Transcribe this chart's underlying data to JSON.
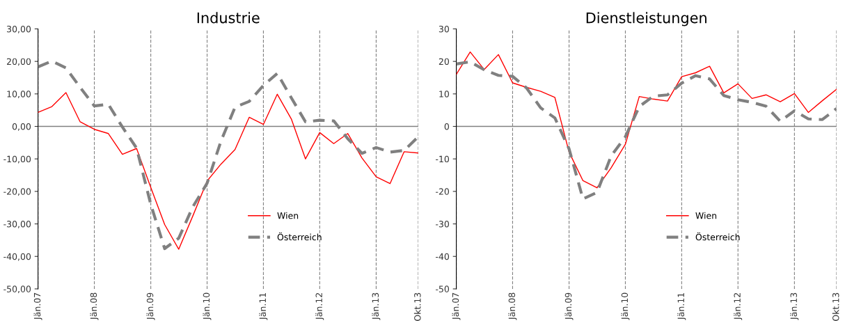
{
  "chart_data": [
    {
      "type": "line",
      "title": "Industrie",
      "x": [
        "2007-01",
        "2007-04",
        "2007-07",
        "2007-10",
        "2008-01",
        "2008-04",
        "2008-07",
        "2008-10",
        "2009-01",
        "2009-04",
        "2009-07",
        "2009-10",
        "2010-01",
        "2010-04",
        "2010-07",
        "2010-10",
        "2011-01",
        "2011-04",
        "2011-07",
        "2011-10",
        "2012-01",
        "2012-04",
        "2012-07",
        "2012-10",
        "2013-01",
        "2013-04",
        "2013-07",
        "2013-10"
      ],
      "series": [
        {
          "name": "Wien",
          "color": "#ff0000",
          "line_style": "solid",
          "values": [
            4.3,
            6.1,
            10.4,
            1.4,
            -0.9,
            -2.2,
            -8.6,
            -6.8,
            -18.8,
            -30.2,
            -37.8,
            -27.5,
            -16.8,
            -11.6,
            -7.1,
            2.8,
            0.6,
            9.9,
            2.3,
            -10.0,
            -1.9,
            -5.3,
            -2.2,
            -9.7,
            -15.5,
            -17.6,
            -7.8,
            -8.2
          ]
        },
        {
          "name": "Österreich",
          "color": "#808080",
          "line_style": "dashed",
          "values": [
            18.3,
            20.1,
            18.0,
            12.0,
            6.3,
            6.8,
            -0.2,
            -6.7,
            -24.0,
            -37.6,
            -34.4,
            -24.7,
            -17.5,
            -4.5,
            5.9,
            7.7,
            12.6,
            16.3,
            8.8,
            1.4,
            1.9,
            1.7,
            -3.8,
            -8.3,
            -6.5,
            -7.9,
            -7.4,
            -3.2
          ]
        }
      ],
      "xlim": [
        "2007-01",
        "2013-10"
      ],
      "xticks": [
        {
          "value": "2007-01",
          "label": "Jän.07"
        },
        {
          "value": "2008-01",
          "label": "Jän.08"
        },
        {
          "value": "2009-01",
          "label": "Jän.09"
        },
        {
          "value": "2010-01",
          "label": "Jän.10"
        },
        {
          "value": "2011-01",
          "label": "Jän.11"
        },
        {
          "value": "2012-01",
          "label": "Jän.12"
        },
        {
          "value": "2013-01",
          "label": "Jän.13"
        },
        {
          "value": "2013-10",
          "label": "Okt.13"
        }
      ],
      "ylim": [
        -50,
        30
      ],
      "yticks": [
        {
          "value": -50,
          "label": "-50,00"
        },
        {
          "value": -40,
          "label": "-40,00"
        },
        {
          "value": -30,
          "label": "-30,00"
        },
        {
          "value": -20,
          "label": "-20,00"
        },
        {
          "value": -10,
          "label": "-10,00"
        },
        {
          "value": 0,
          "label": "0,00"
        },
        {
          "value": 10,
          "label": "10,00"
        },
        {
          "value": 20,
          "label": "20,00"
        },
        {
          "value": 30,
          "label": "30,00"
        }
      ],
      "ref_lines": [
        {
          "axis": "y",
          "value": 0,
          "color": "#808080"
        }
      ],
      "grid": "x",
      "legend": "bottom",
      "marker": "none"
    },
    {
      "type": "line",
      "title": "Dienstleistungen",
      "x": [
        "2007-01",
        "2007-04",
        "2007-07",
        "2007-10",
        "2008-01",
        "2008-04",
        "2008-07",
        "2008-10",
        "2009-01",
        "2009-04",
        "2009-07",
        "2009-10",
        "2010-01",
        "2010-04",
        "2010-07",
        "2010-10",
        "2011-01",
        "2011-04",
        "2011-07",
        "2011-10",
        "2012-01",
        "2012-04",
        "2012-07",
        "2012-10",
        "2013-01",
        "2013-04",
        "2013-07",
        "2013-10"
      ],
      "series": [
        {
          "name": "Wien",
          "color": "#ff0000",
          "line_style": "solid",
          "values": [
            16.0,
            22.9,
            17.5,
            22.1,
            13.4,
            12.0,
            10.8,
            8.9,
            -7.9,
            -16.7,
            -18.9,
            -12.7,
            -5.5,
            9.2,
            8.4,
            7.8,
            15.3,
            16.5,
            18.5,
            10.3,
            13.1,
            8.6,
            9.7,
            7.6,
            10.1,
            4.3,
            7.9,
            11.4
          ]
        },
        {
          "name": "Österreich",
          "color": "#808080",
          "line_style": "dashed",
          "values": [
            19.2,
            19.9,
            17.4,
            15.7,
            15.4,
            11.8,
            5.7,
            2.6,
            -6.9,
            -22.3,
            -20.3,
            -9.1,
            -3.2,
            6.1,
            9.3,
            9.7,
            13.3,
            15.6,
            14.6,
            9.5,
            8.2,
            7.4,
            6.2,
            1.6,
            4.8,
            2.3,
            2.1,
            5.5
          ]
        }
      ],
      "xlim": [
        "2007-01",
        "2013-10"
      ],
      "xticks": [
        {
          "value": "2007-01",
          "label": "Jän.07"
        },
        {
          "value": "2008-01",
          "label": "Jän.08"
        },
        {
          "value": "2009-01",
          "label": "Jän.09"
        },
        {
          "value": "2010-01",
          "label": "Jän.10"
        },
        {
          "value": "2011-01",
          "label": "Jän.11"
        },
        {
          "value": "2012-01",
          "label": "Jän.12"
        },
        {
          "value": "2013-01",
          "label": "Jän.13"
        },
        {
          "value": "2013-10",
          "label": "Okt.13"
        }
      ],
      "ylim": [
        -50,
        30
      ],
      "yticks": [
        -50,
        -40,
        -30,
        -20,
        -10,
        0,
        10,
        20,
        30
      ],
      "ref_lines": [
        {
          "axis": "y",
          "value": 0,
          "color": "#808080"
        }
      ],
      "grid": "x",
      "legend": "bottom",
      "marker": "none"
    }
  ]
}
